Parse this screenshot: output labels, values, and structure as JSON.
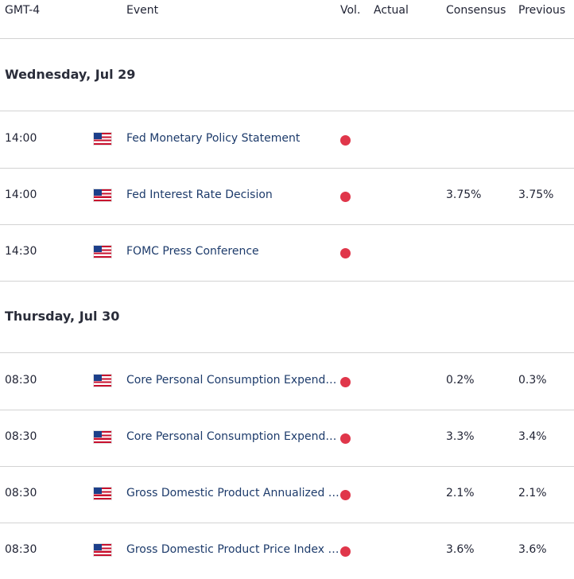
{
  "header": {
    "time": "GMT-4",
    "event": "Event",
    "vol": "Vol.",
    "actual": "Actual",
    "consensus": "Consensus",
    "previous": "Previous"
  },
  "days": [
    {
      "label": "Wednesday, Jul 29",
      "events": [
        {
          "time": "14:00",
          "country": "US",
          "name": "Fed Monetary Policy Statement",
          "actual": "",
          "consensus": "",
          "previous": ""
        },
        {
          "time": "14:00",
          "country": "US",
          "name": "Fed Interest Rate Decision",
          "actual": "",
          "consensus": "3.75%",
          "previous": "3.75%"
        },
        {
          "time": "14:30",
          "country": "US",
          "name": "FOMC Press Conference",
          "actual": "",
          "consensus": "",
          "previous": ""
        }
      ]
    },
    {
      "label": "Thursday, Jul 30",
      "events": [
        {
          "time": "08:30",
          "country": "US",
          "name": "Core Personal Consumption Expenditures",
          "actual": "",
          "consensus": "0.2%",
          "previous": "0.3%"
        },
        {
          "time": "08:30",
          "country": "US",
          "name": "Core Personal Consumption Expenditures",
          "actual": "",
          "consensus": "3.3%",
          "previous": "3.4%"
        },
        {
          "time": "08:30",
          "country": "US",
          "name": "Gross Domestic Product Annualized (QoQ)",
          "actual": "",
          "consensus": "2.1%",
          "previous": "2.1%"
        },
        {
          "time": "08:30",
          "country": "US",
          "name": "Gross Domestic Product Price Index (QoQ)",
          "actual": "",
          "consensus": "3.6%",
          "previous": "3.6%"
        }
      ]
    }
  ],
  "colors": {
    "volatility_high": "#e0364a",
    "event_link": "#1d3b6b",
    "divider": "#d3d3d3"
  },
  "icons": {
    "flag": "us-flag-icon",
    "volatility": "high-volatility-dot-icon"
  }
}
